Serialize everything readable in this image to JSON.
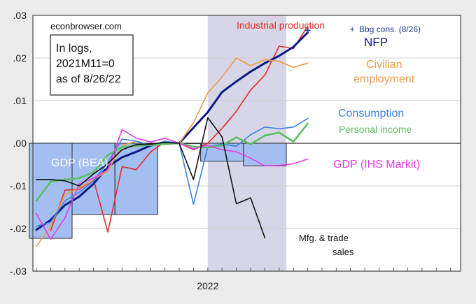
{
  "chart_data": {
    "type": "line",
    "source": "econbrowser.com",
    "note": [
      "In logs,",
      "2021M11=0",
      "as of 8/26/22"
    ],
    "xlabel": "",
    "ylabel": "",
    "x_tick_labels": [
      "2022"
    ],
    "ylim": [
      -0.03,
      0.03
    ],
    "y_ticks": [
      0.03,
      0.02,
      0.01,
      0.0,
      -0.01,
      -0.02,
      -0.03
    ],
    "y_tick_labels": [
      ".03",
      ".02",
      ".01",
      ".00",
      "-.01",
      "-.02",
      "-.03"
    ],
    "grid": true,
    "recession_shading": {
      "from": "2022-01",
      "to": "2022-06"
    },
    "colors": {
      "background": "#ebebeb",
      "plot": "#ffffff",
      "shade": "#d6d6e8",
      "gdp_bar": "#a3bff1",
      "gdp_bar_edge": "#2b2b2b"
    },
    "gdp_bea": {
      "name": "GDP (BEA)",
      "bars": [
        {
          "quarter": "2021Q1",
          "value": -0.0223
        },
        {
          "quarter": "2021Q2",
          "value": -0.0167
        },
        {
          "quarter": "2021Q3",
          "value": -0.0167
        },
        {
          "quarter": "2021Q4",
          "value": 0.0
        },
        {
          "quarter": "2022Q1",
          "value": -0.0042
        },
        {
          "quarter": "2022Q2",
          "value": -0.0053
        }
      ]
    },
    "series": [
      {
        "name": "Industrial production",
        "color": "#e8292b",
        "width": 1.6,
        "points": [
          [
            "2021-02",
            -0.0205
          ],
          [
            "2021-03",
            -0.011
          ],
          [
            "2021-04",
            -0.0108
          ],
          [
            "2021-05",
            -0.0085
          ],
          [
            "2021-06",
            -0.0208
          ],
          [
            "2021-07",
            -0.0055
          ],
          [
            "2021-08",
            -0.0062
          ],
          [
            "2021-09",
            -0.002
          ],
          [
            "2021-10",
            0.0003
          ],
          [
            "2021-11",
            0.0
          ],
          [
            "2021-12",
            -0.0015
          ],
          [
            "2022-01",
            -0.0
          ],
          [
            "2022-02",
            0.0035
          ],
          [
            "2022-03",
            0.0075
          ],
          [
            "2022-04",
            0.0125
          ],
          [
            "2022-05",
            0.016
          ],
          [
            "2022-06",
            0.0228
          ],
          [
            "2022-07",
            0.0222
          ],
          [
            "2022-08",
            0.0275
          ]
        ]
      },
      {
        "name": "NFP",
        "color": "#0a1a85",
        "width": 3,
        "points": [
          [
            "2021-01",
            -0.0203
          ],
          [
            "2021-02",
            -0.018
          ],
          [
            "2021-03",
            -0.0145
          ],
          [
            "2021-04",
            -0.0125
          ],
          [
            "2021-05",
            -0.0095
          ],
          [
            "2021-06",
            -0.0055
          ],
          [
            "2021-07",
            -0.0033
          ],
          [
            "2021-08",
            -0.002
          ],
          [
            "2021-09",
            -0.0005
          ],
          [
            "2021-10",
            0.0002
          ],
          [
            "2021-11",
            0.0
          ],
          [
            "2022-01",
            0.0073
          ],
          [
            "2022-02",
            0.012
          ],
          [
            "2022-03",
            0.0145
          ],
          [
            "2022-04",
            0.0168
          ],
          [
            "2022-05",
            0.0188
          ],
          [
            "2022-06",
            0.0205
          ],
          [
            "2022-07",
            0.0226
          ],
          [
            "2022-08",
            0.026
          ]
        ]
      },
      {
        "name": "Civilian\nemployment",
        "color": "#f09a44",
        "width": 1.6,
        "points": [
          [
            "2021-01",
            -0.0242
          ],
          [
            "2021-02",
            -0.0195
          ],
          [
            "2021-03",
            -0.012
          ],
          [
            "2021-04",
            -0.0105
          ],
          [
            "2021-05",
            -0.0085
          ],
          [
            "2021-06",
            -0.0065
          ],
          [
            "2021-07",
            -0.0005
          ],
          [
            "2021-08",
            0.0005
          ],
          [
            "2021-09",
            -0.0005
          ],
          [
            "2021-10",
            0.0005
          ],
          [
            "2021-11",
            0.0
          ],
          [
            "2021-12",
            0.0048
          ],
          [
            "2022-01",
            0.0118
          ],
          [
            "2022-02",
            0.0155
          ],
          [
            "2022-03",
            0.02
          ],
          [
            "2022-04",
            0.0182
          ],
          [
            "2022-05",
            0.0196
          ],
          [
            "2022-06",
            0.0192
          ],
          [
            "2022-07",
            0.0178
          ],
          [
            "2022-08",
            0.0188
          ]
        ]
      },
      {
        "name": "Consumption",
        "color": "#3c82dc",
        "width": 1.6,
        "points": [
          [
            "2021-01",
            -0.0195
          ],
          [
            "2021-02",
            -0.0185
          ],
          [
            "2021-03",
            -0.0135
          ],
          [
            "2021-04",
            -0.0115
          ],
          [
            "2021-05",
            -0.0088
          ],
          [
            "2021-06",
            -0.0045
          ],
          [
            "2021-07",
            0.001
          ],
          [
            "2021-08",
            0.0005
          ],
          [
            "2021-09",
            -0.0005
          ],
          [
            "2021-10",
            0.0005
          ],
          [
            "2021-11",
            0.0
          ],
          [
            "2021-12",
            -0.0143
          ],
          [
            "2022-01",
            -0.0009
          ],
          [
            "2022-02",
            -0.0002
          ],
          [
            "2022-03",
            -0.0007
          ],
          [
            "2022-04",
            0.002
          ],
          [
            "2022-05",
            0.0038
          ],
          [
            "2022-06",
            0.0034
          ],
          [
            "2022-07",
            0.0038
          ],
          [
            "2022-08",
            0.0058
          ]
        ]
      },
      {
        "name": "Personal income",
        "color": "#5bbe63",
        "width": 2.6,
        "points": [
          [
            "2021-01",
            -0.0135
          ],
          [
            "2021-02",
            -0.009
          ],
          [
            "2021-03",
            -0.0085
          ],
          [
            "2021-04",
            -0.0082
          ],
          [
            "2021-05",
            -0.0068
          ],
          [
            "2021-06",
            -0.0028
          ],
          [
            "2021-07",
            -0.0009
          ],
          [
            "2021-08",
            -0.0006
          ],
          [
            "2021-09",
            -0.0004
          ],
          [
            "2021-10",
            -0.0002
          ],
          [
            "2021-11",
            0.0
          ],
          [
            "2021-12",
            -0.0008
          ],
          [
            "2022-01",
            -0.001
          ],
          [
            "2022-02",
            -0.0005
          ],
          [
            "2022-03",
            0.0014
          ],
          [
            "2022-04",
            -0.0002
          ],
          [
            "2022-05",
            0.0018
          ],
          [
            "2022-06",
            0.0025
          ],
          [
            "2022-07",
            0.0004
          ],
          [
            "2022-08",
            0.0046
          ]
        ]
      },
      {
        "name": "GDP (IHS Markit)",
        "color": "#e33ce3",
        "width": 1.6,
        "points": [
          [
            "2021-01",
            -0.0165
          ],
          [
            "2021-02",
            -0.0225
          ],
          [
            "2021-03",
            -0.0175
          ],
          [
            "2021-04",
            -0.0095
          ],
          [
            "2021-05",
            -0.0082
          ],
          [
            "2021-06",
            -0.0062
          ],
          [
            "2021-07",
            0.0032
          ],
          [
            "2021-08",
            0.0012
          ],
          [
            "2021-09",
            0.0003
          ],
          [
            "2021-10",
            0.0012
          ],
          [
            "2021-11",
            0.0
          ],
          [
            "2021-12",
            -0.0013
          ],
          [
            "2022-01",
            -0.0005
          ],
          [
            "2022-02",
            -0.0015
          ],
          [
            "2022-03",
            -0.002
          ],
          [
            "2022-04",
            -0.0035
          ],
          [
            "2022-05",
            -0.0053
          ],
          [
            "2022-06",
            -0.0052
          ],
          [
            "2022-07",
            -0.0048
          ],
          [
            "2022-08",
            -0.0037
          ]
        ]
      },
      {
        "name": "Mfg. & trade\nsales",
        "color": "#111111",
        "width": 1.6,
        "points": [
          [
            "2021-01",
            -0.0085
          ],
          [
            "2021-02",
            -0.0085
          ],
          [
            "2021-03",
            -0.0088
          ],
          [
            "2021-04",
            -0.01
          ],
          [
            "2021-05",
            -0.0072
          ],
          [
            "2021-06",
            -0.0048
          ],
          [
            "2021-07",
            -0.0015
          ],
          [
            "2021-08",
            -0.0003
          ],
          [
            "2021-09",
            -0.0002
          ],
          [
            "2021-10",
            0.0002
          ],
          [
            "2021-11",
            0.0
          ],
          [
            "2021-12",
            -0.0085
          ],
          [
            "2022-01",
            0.006
          ],
          [
            "2022-02",
            0.0015
          ],
          [
            "2022-03",
            -0.0142
          ],
          [
            "2022-04",
            -0.0128
          ],
          [
            "2022-05",
            -0.0222
          ]
        ]
      }
    ],
    "bbg_consensus": {
      "name": "Bbg cons. (8/26)",
      "color": "#1e3c9a",
      "date": "2022-08",
      "value": 0.0265
    }
  }
}
